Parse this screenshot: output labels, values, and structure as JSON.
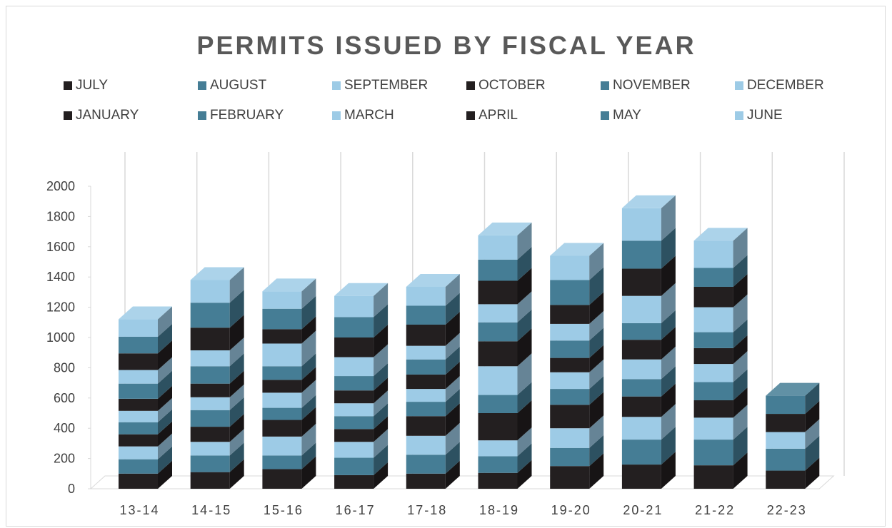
{
  "chart_data": {
    "type": "bar",
    "stacked": true,
    "three_d": true,
    "title": "PERMITS ISSUED BY FISCAL YEAR",
    "xlabel": "",
    "ylabel": "",
    "ylim": [
      0,
      2000
    ],
    "yticks": [
      0,
      200,
      400,
      600,
      800,
      1000,
      1200,
      1400,
      1600,
      1800,
      2000
    ],
    "grid": true,
    "legend_position": "top",
    "categories": [
      "13-14",
      "14-15",
      "15-16",
      "16-17",
      "17-18",
      "18-19",
      "19-20",
      "20-21",
      "21-22",
      "22-23"
    ],
    "series": [
      {
        "name": "JULY",
        "color": "#231f20",
        "values": [
          100,
          110,
          130,
          90,
          100,
          105,
          150,
          160,
          155,
          120
        ]
      },
      {
        "name": "AUGUST",
        "color": "#457d95",
        "values": [
          95,
          110,
          90,
          115,
          125,
          110,
          120,
          165,
          170,
          145
        ]
      },
      {
        "name": "SEPTEMBER",
        "color": "#9dcbe6",
        "values": [
          85,
          90,
          125,
          105,
          125,
          105,
          130,
          150,
          145,
          110
        ]
      },
      {
        "name": "OCTOBER",
        "color": "#231f20",
        "values": [
          80,
          100,
          110,
          85,
          130,
          180,
          155,
          135,
          115,
          120
        ]
      },
      {
        "name": "NOVEMBER",
        "color": "#457d95",
        "values": [
          80,
          110,
          80,
          85,
          95,
          120,
          105,
          115,
          120,
          120
        ]
      },
      {
        "name": "DECEMBER",
        "color": "#9dcbe6",
        "values": [
          75,
          85,
          100,
          85,
          85,
          190,
          110,
          130,
          120,
          0
        ]
      },
      {
        "name": "JANUARY",
        "color": "#231f20",
        "values": [
          80,
          90,
          85,
          85,
          95,
          165,
          95,
          130,
          105,
          0
        ]
      },
      {
        "name": "FEBRUARY",
        "color": "#457d95",
        "values": [
          100,
          115,
          90,
          95,
          100,
          125,
          115,
          110,
          105,
          0
        ]
      },
      {
        "name": "MARCH",
        "color": "#9dcbe6",
        "values": [
          90,
          105,
          150,
          125,
          90,
          120,
          110,
          180,
          165,
          0
        ]
      },
      {
        "name": "APRIL",
        "color": "#231f20",
        "values": [
          110,
          150,
          95,
          130,
          140,
          155,
          125,
          180,
          135,
          0
        ]
      },
      {
        "name": "MAY",
        "color": "#457d95",
        "values": [
          110,
          165,
          135,
          135,
          125,
          140,
          165,
          185,
          125,
          0
        ]
      },
      {
        "name": "JUNE",
        "color": "#9dcbe6",
        "values": [
          115,
          150,
          115,
          140,
          125,
          160,
          160,
          215,
          180,
          0
        ]
      }
    ]
  }
}
